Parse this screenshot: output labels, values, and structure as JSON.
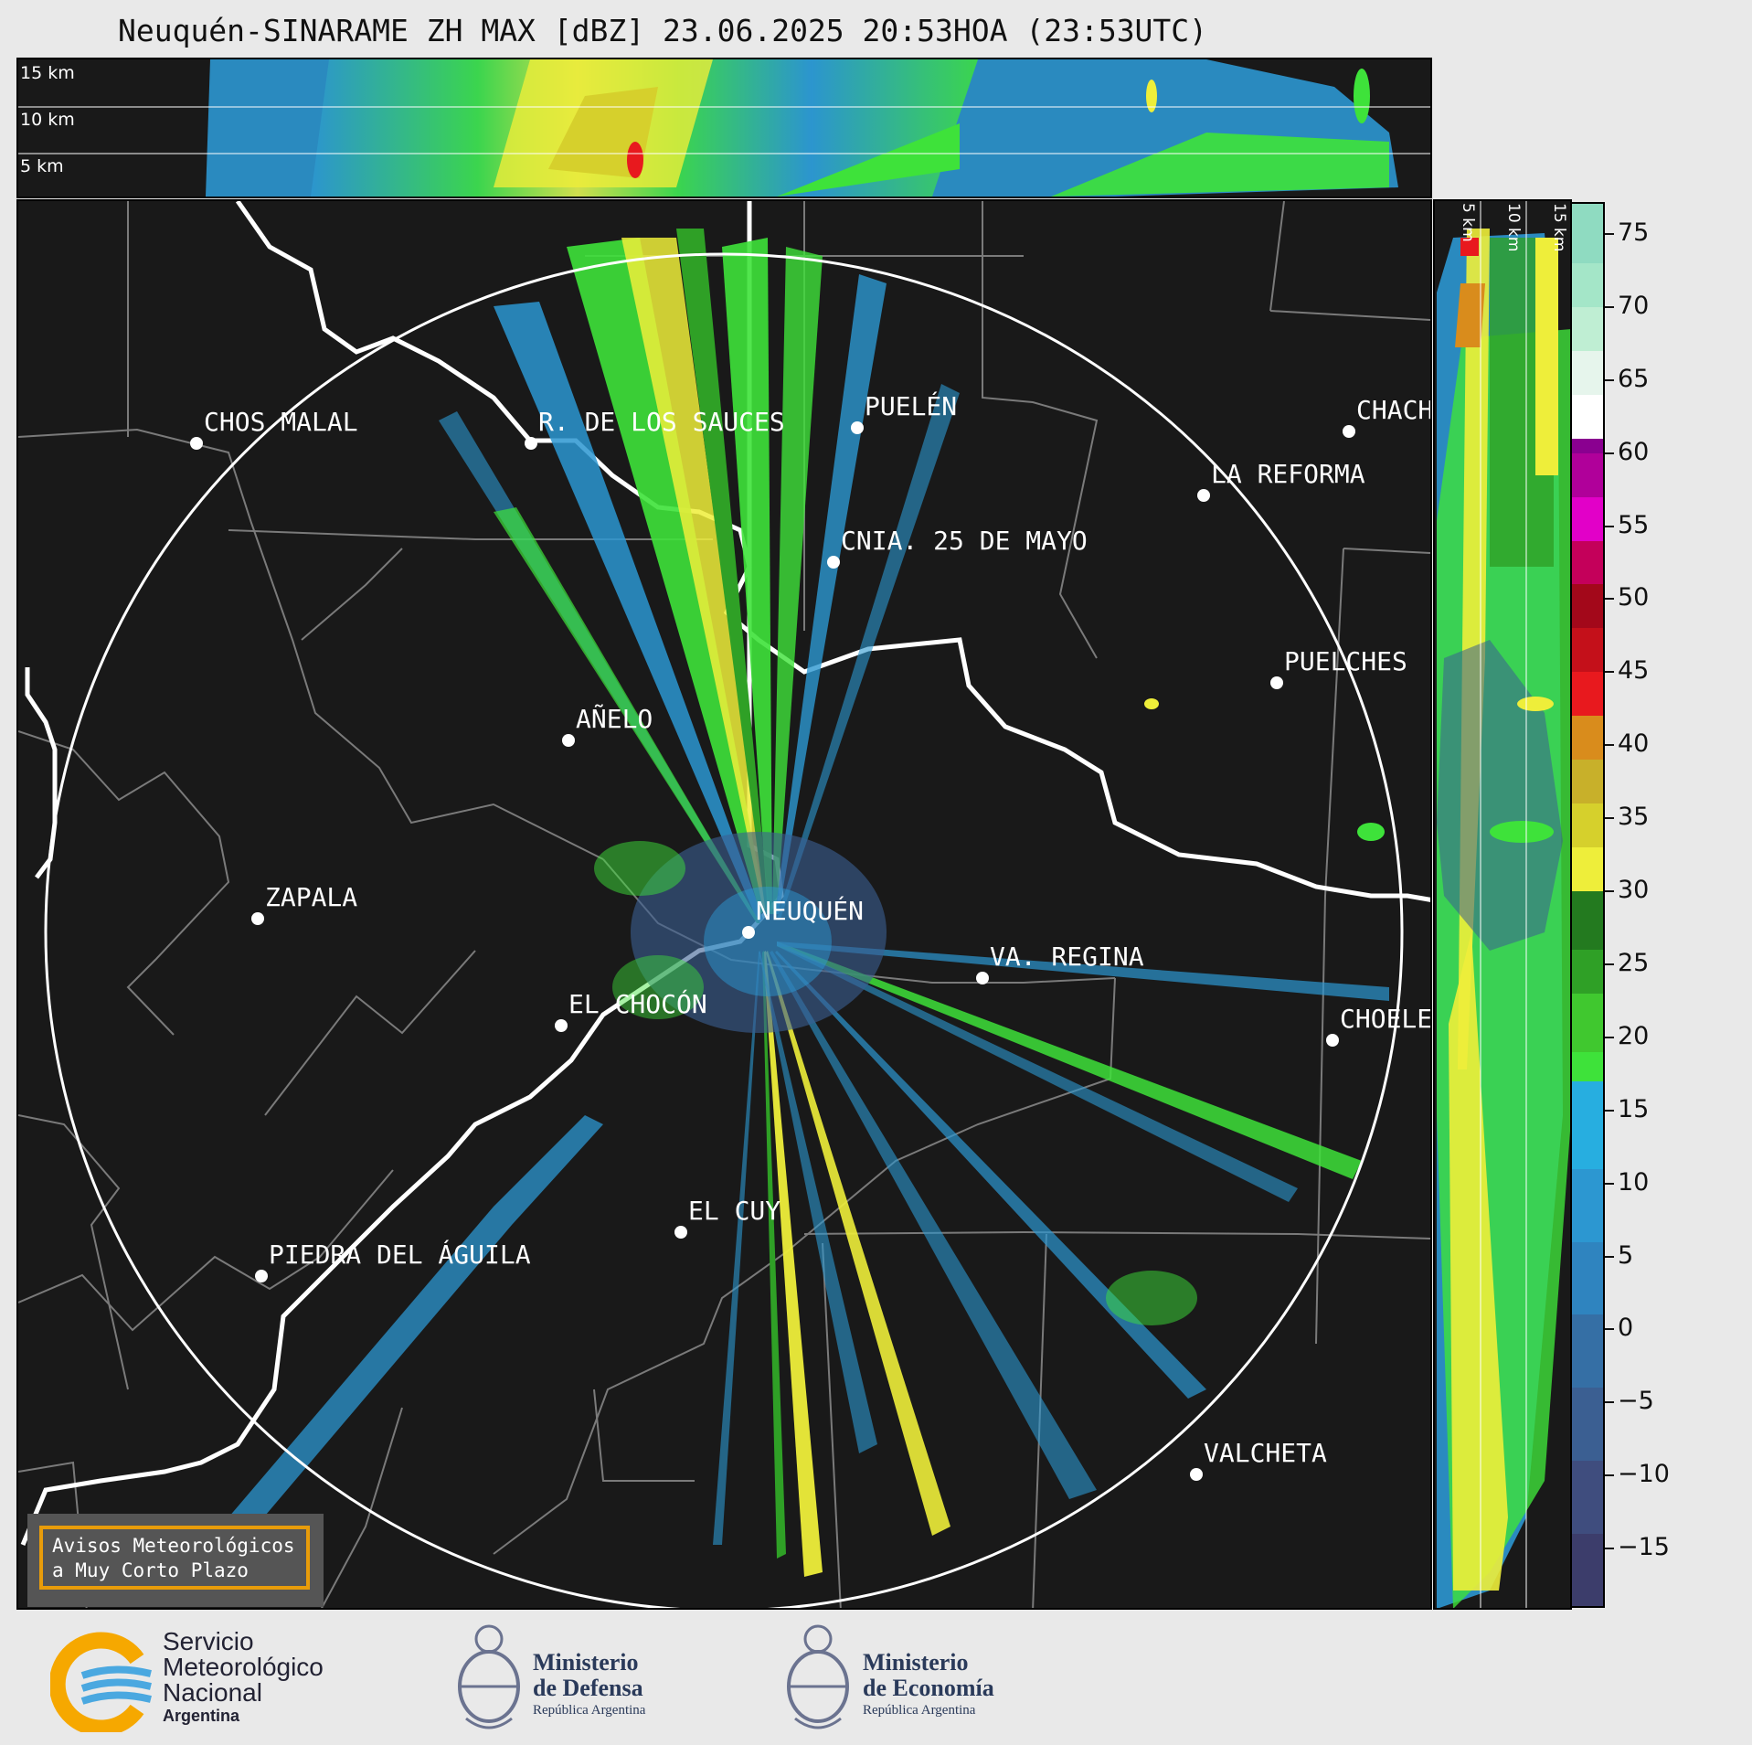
{
  "title": "Neuquén-SINARAME ZH MAX [dBZ] 23.06.2025 20:53HOA (23:53UTC)",
  "top_panel": {
    "altitude_labels": [
      "15 km",
      "10 km",
      "5 km"
    ]
  },
  "side_panel": {
    "altitude_labels": [
      "5 km",
      "10 km",
      "15 km"
    ]
  },
  "map": {
    "cities": [
      {
        "name": "CHOS MALAL"
      },
      {
        "name": "R. DE LOS SAUCES"
      },
      {
        "name": "PUELÉN"
      },
      {
        "name": "CHACH"
      },
      {
        "name": "LA REFORMA"
      },
      {
        "name": "CNIA. 25 DE MAYO"
      },
      {
        "name": "PUELCHES"
      },
      {
        "name": "AÑELO"
      },
      {
        "name": "ZAPALA"
      },
      {
        "name": "NEUQUÉN"
      },
      {
        "name": "VA. REGINA"
      },
      {
        "name": "CHOELE"
      },
      {
        "name": "EL CHOCÓN"
      },
      {
        "name": "EL CUY"
      },
      {
        "name": "PIEDRA DEL ÁGUILA"
      },
      {
        "name": "VALCHETA"
      }
    ],
    "notice": {
      "line1": "Avisos Meteorológicos",
      "line2": "a Muy Corto Plazo"
    }
  },
  "colorbar": {
    "min": -19,
    "max": 77,
    "ticks": [
      "75",
      "70",
      "65",
      "60",
      "55",
      "50",
      "45",
      "40",
      "35",
      "30",
      "25",
      "20",
      "15",
      "10",
      "5",
      "0",
      "−5",
      "−10",
      "−15"
    ],
    "colors": [
      "#3c3d6b",
      "#3f4d7e",
      "#3b5f92",
      "#356fa5",
      "#2f84bf",
      "#2c97d1",
      "#27aee0",
      "#3ee23a",
      "#40c82f",
      "#2fa026",
      "#237a1f",
      "#eeee3a",
      "#d6d02c",
      "#c8b02a",
      "#d98c1c",
      "#e8191e",
      "#c4101a",
      "#a3081a",
      "#c4005a",
      "#e200c8",
      "#b0009a",
      "#8a0090",
      "#ffffff",
      "#e6f5ec",
      "#bfeed3",
      "#a4e6c8",
      "#8fdbc1"
    ]
  },
  "logos": {
    "smn_line1": "Servicio",
    "smn_line2": "Meteorológico",
    "smn_line3": "Nacional",
    "smn_line4": "Argentina",
    "defensa_line1": "Ministerio",
    "defensa_line2": "de Defensa",
    "defensa_line3": "República Argentina",
    "economia_line1": "Ministerio",
    "economia_line2": "de Economía",
    "economia_line3": "República Argentina"
  }
}
